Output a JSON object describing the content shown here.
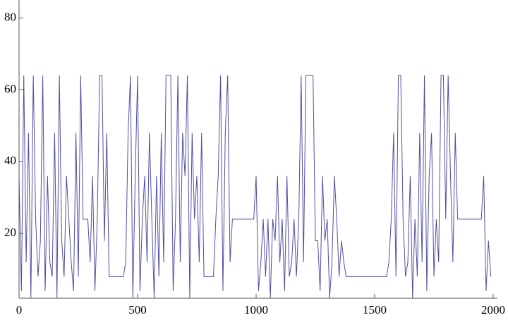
{
  "chart_data": {
    "type": "line",
    "color": "#4f4fa3",
    "x": [
      0,
      10,
      20,
      30,
      40,
      50,
      60,
      70,
      80,
      90,
      100,
      110,
      120,
      130,
      140,
      150,
      160,
      170,
      180,
      190,
      200,
      210,
      220,
      230,
      240,
      250,
      260,
      270,
      280,
      290,
      300,
      310,
      320,
      330,
      340,
      350,
      360,
      370,
      380,
      390,
      400,
      410,
      420,
      430,
      440,
      450,
      460,
      470,
      480,
      490,
      500,
      510,
      520,
      530,
      540,
      550,
      560,
      570,
      580,
      590,
      600,
      610,
      620,
      630,
      640,
      650,
      660,
      670,
      680,
      690,
      700,
      710,
      720,
      730,
      740,
      750,
      760,
      770,
      780,
      790,
      800,
      810,
      820,
      830,
      840,
      850,
      860,
      870,
      880,
      890,
      900,
      910,
      920,
      930,
      940,
      950,
      960,
      970,
      980,
      990,
      1000,
      1010,
      1020,
      1030,
      1040,
      1050,
      1060,
      1070,
      1080,
      1090,
      1100,
      1110,
      1120,
      1130,
      1140,
      1150,
      1160,
      1170,
      1180,
      1190,
      1200,
      1210,
      1220,
      1230,
      1240,
      1250,
      1260,
      1270,
      1280,
      1290,
      1300,
      1310,
      1320,
      1330,
      1340,
      1350,
      1360,
      1370,
      1380,
      1390,
      1400,
      1410,
      1420,
      1430,
      1440,
      1450,
      1460,
      1470,
      1480,
      1490,
      1500,
      1510,
      1520,
      1530,
      1540,
      1550,
      1560,
      1570,
      1580,
      1590,
      1600,
      1610,
      1620,
      1630,
      1640,
      1650,
      1660,
      1670,
      1680,
      1690,
      1700,
      1710,
      1720,
      1730,
      1740,
      1750,
      1760,
      1770,
      1780,
      1790,
      1800,
      1810,
      1820,
      1830,
      1840,
      1850,
      1860,
      1870,
      1880,
      1890,
      1900,
      1910,
      1920,
      1930,
      1940,
      1950,
      1960,
      1970,
      1980,
      1990
    ],
    "values": [
      36,
      4,
      64,
      12,
      48,
      2,
      64,
      24,
      8,
      18,
      64,
      4,
      36,
      12,
      8,
      48,
      2,
      64,
      18,
      8,
      36,
      24,
      12,
      4,
      48,
      8,
      64,
      24,
      24,
      24,
      12,
      36,
      4,
      24,
      64,
      64,
      18,
      48,
      8,
      8,
      8,
      8,
      8,
      8,
      8,
      12,
      48,
      64,
      2,
      36,
      64,
      4,
      24,
      36,
      12,
      48,
      24,
      2,
      36,
      8,
      48,
      12,
      64,
      64,
      64,
      4,
      24,
      64,
      12,
      48,
      36,
      64,
      2,
      48,
      24,
      36,
      12,
      48,
      8,
      8,
      8,
      8,
      8,
      24,
      36,
      64,
      4,
      48,
      64,
      12,
      24,
      24,
      24,
      24,
      24,
      24,
      24,
      24,
      24,
      24,
      36,
      4,
      12,
      24,
      8,
      24,
      2,
      24,
      18,
      36,
      12,
      24,
      4,
      36,
      8,
      12,
      24,
      8,
      24,
      64,
      12,
      64,
      64,
      64,
      64,
      18,
      18,
      4,
      36,
      18,
      24,
      2,
      12,
      36,
      24,
      8,
      18,
      12,
      8,
      8,
      8,
      8,
      8,
      8,
      8,
      8,
      8,
      8,
      8,
      8,
      8,
      8,
      8,
      8,
      8,
      8,
      12,
      24,
      48,
      8,
      64,
      64,
      24,
      8,
      12,
      36,
      2,
      24,
      8,
      48,
      12,
      64,
      4,
      36,
      48,
      8,
      24,
      12,
      64,
      64,
      24,
      64,
      36,
      12,
      48,
      24,
      24,
      24,
      24,
      24,
      24,
      24,
      24,
      24,
      24,
      24,
      36,
      4,
      18,
      8
    ],
    "xlim": [
      0,
      2000
    ],
    "ylim": [
      2,
      85
    ],
    "xticks": [
      0,
      500,
      1000,
      1500,
      2000
    ],
    "yticks": [
      20,
      40,
      60,
      80
    ]
  }
}
